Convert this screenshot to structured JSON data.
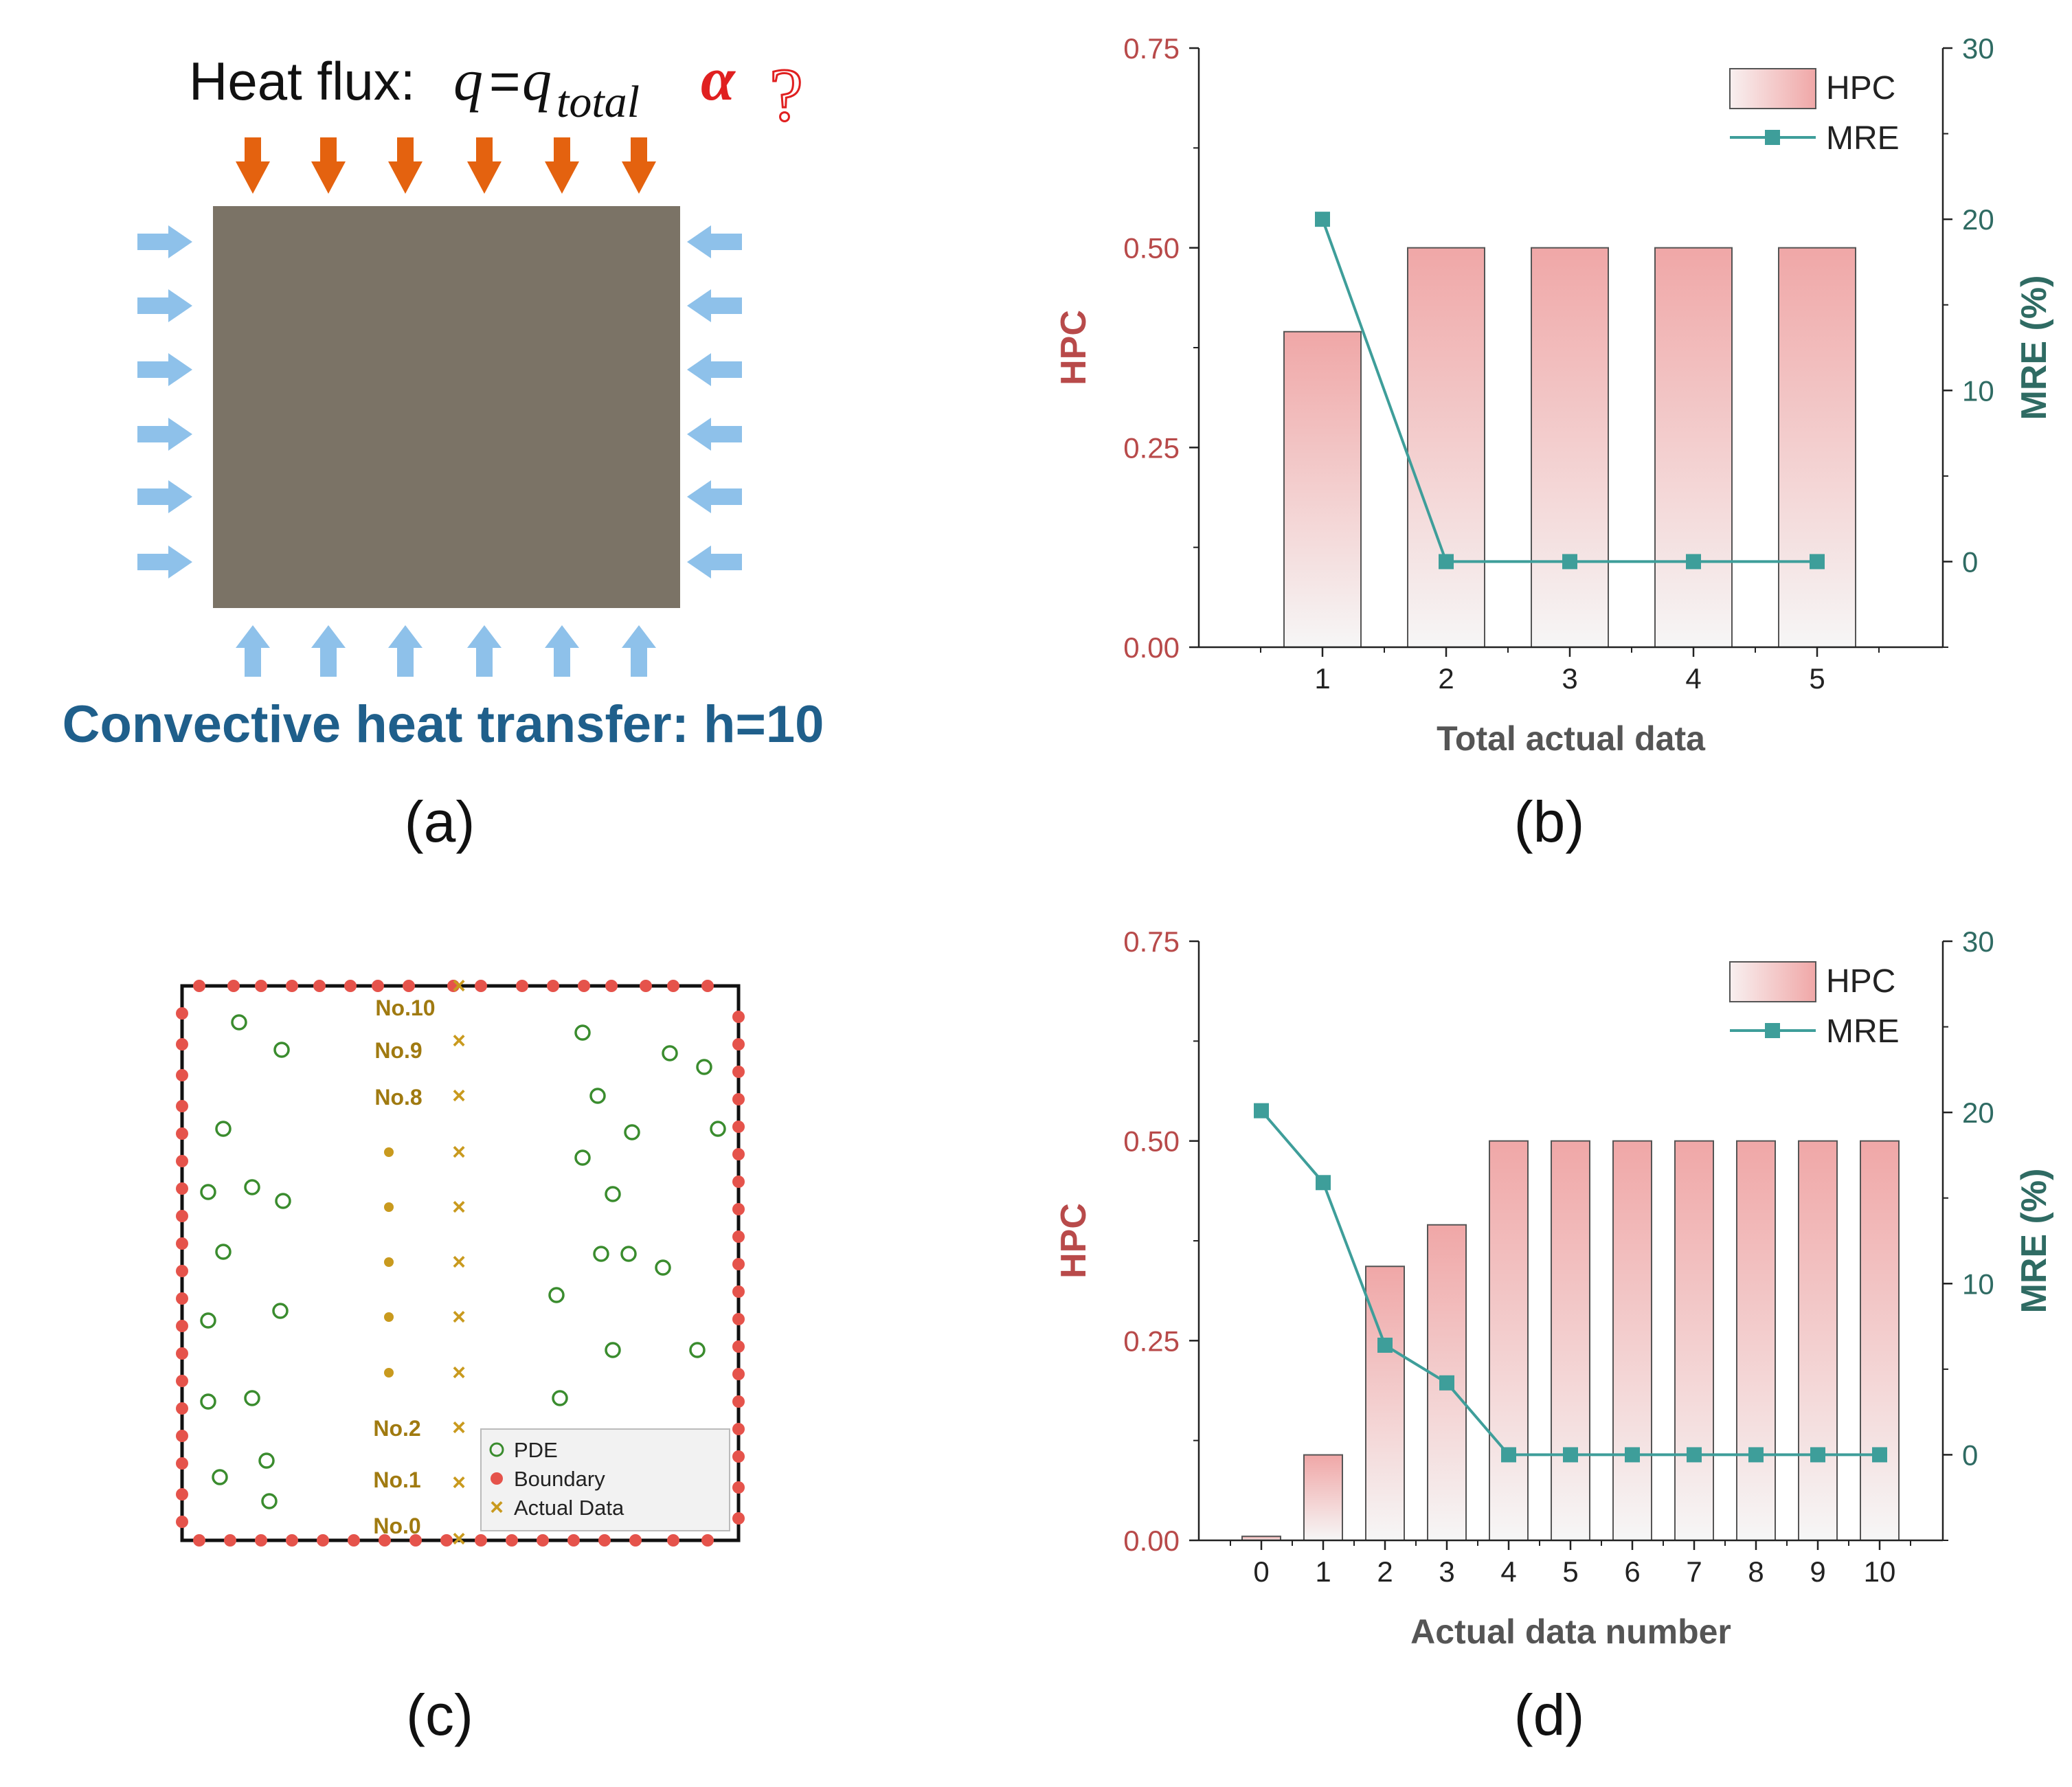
{
  "panel_a": {
    "heat_prefix": "Heat flux:",
    "q": "q",
    "eq": "=",
    "q2": "q",
    "sub": "total",
    "alpha": "α",
    "qmark": "?",
    "convective": "Convective heat transfer: h=10",
    "caption": "(a)",
    "colors": {
      "top_arrow": "#e4620f",
      "side_arrow": "#8ec1ea",
      "block": "#7b7366",
      "convective_text": "#1f5f8b",
      "alpha": "#e02020"
    }
  },
  "panel_b_caption": "(b)",
  "panel_c": {
    "caption": "(c)",
    "labels": [
      "No.10",
      "No.9",
      "No.8",
      "No.2",
      "No.1",
      "No.0"
    ],
    "legend": {
      "pde": "PDE",
      "boundary": "Boundary",
      "actual": "Actual Data"
    },
    "colors": {
      "pde": "#3a8c2e",
      "boundary": "#e5534b",
      "actual": "#c99a1e",
      "label": "#a07a10"
    }
  },
  "panel_d_caption": "(d)",
  "chart_data": [
    {
      "type": "bar",
      "categories": [
        "1",
        "2",
        "3",
        "4",
        "5"
      ],
      "series": [
        {
          "name": "HPC",
          "type": "bar",
          "axis": "left",
          "values": [
            0.395,
            0.5,
            0.5,
            0.5,
            0.5
          ]
        },
        {
          "name": "MRE",
          "type": "line",
          "axis": "right",
          "values": [
            20,
            0,
            0,
            0,
            0
          ]
        }
      ],
      "xlabel": "Total actual data",
      "ylabel": "HPC",
      "y2label": "MRE (%)",
      "ylim": [
        0,
        0.75
      ],
      "y2lim": [
        -5,
        30
      ],
      "yticks": [
        "0.00",
        "0.25",
        "0.50",
        "0.75"
      ],
      "y2ticks": [
        "0",
        "10",
        "20",
        "30"
      ],
      "legend_position": "top-right",
      "colors": {
        "hpc": "#f2a3a3",
        "mre": "#3e9e9a",
        "left_axis": "#b84a4a",
        "right_axis": "#2f6b63"
      }
    },
    {
      "type": "bar",
      "categories": [
        "0",
        "1",
        "2",
        "3",
        "4",
        "5",
        "6",
        "7",
        "8",
        "9",
        "10"
      ],
      "series": [
        {
          "name": "HPC",
          "type": "bar",
          "axis": "left",
          "values": [
            0.005,
            0.107,
            0.343,
            0.395,
            0.5,
            0.5,
            0.5,
            0.5,
            0.5,
            0.5,
            0.5
          ]
        },
        {
          "name": "MRE",
          "type": "line",
          "axis": "right",
          "values": [
            20.1,
            15.9,
            6.4,
            4.2,
            0,
            0,
            0,
            0,
            0,
            0,
            0
          ]
        }
      ],
      "xlabel": "Actual data number",
      "ylabel": "HPC",
      "y2label": "MRE (%)",
      "ylim": [
        0,
        0.75
      ],
      "y2lim": [
        -5,
        30
      ],
      "yticks": [
        "0.00",
        "0.25",
        "0.50",
        "0.75"
      ],
      "y2ticks": [
        "0",
        "10",
        "20",
        "30"
      ],
      "legend_position": "top-right",
      "colors": {
        "hpc": "#f2a3a3",
        "mre": "#3e9e9a",
        "left_axis": "#b84a4a",
        "right_axis": "#2f6b63"
      }
    }
  ]
}
